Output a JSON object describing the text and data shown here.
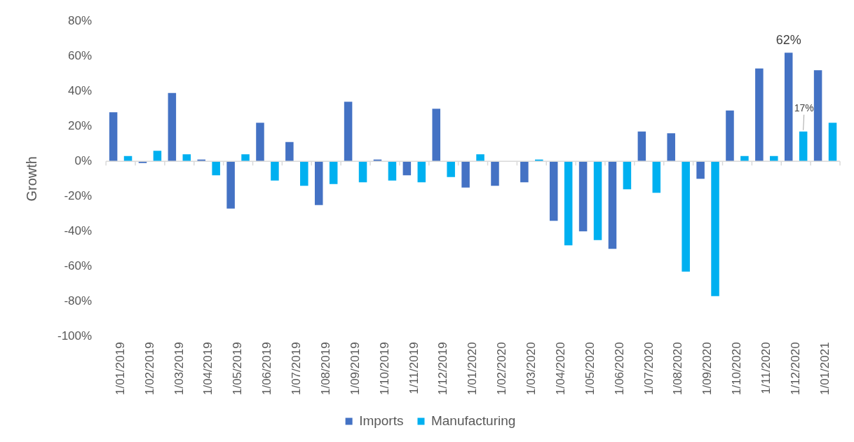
{
  "chart_data": {
    "type": "bar",
    "ylabel": "Growth",
    "categories": [
      "1/01/2019",
      "1/02/2019",
      "1/03/2019",
      "1/04/2019",
      "1/05/2019",
      "1/06/2019",
      "1/07/2019",
      "1/08/2019",
      "1/09/2019",
      "1/10/2019",
      "1/11/2019",
      "1/12/2019",
      "1/01/2020",
      "1/02/2020",
      "1/03/2020",
      "1/04/2020",
      "1/05/2020",
      "1/06/2020",
      "1/07/2020",
      "1/08/2020",
      "1/09/2020",
      "1/10/2020",
      "1/11/2020",
      "1/12/2020",
      "1/01/2021"
    ],
    "series": [
      {
        "name": "Imports",
        "color": "#4472c4",
        "values": [
          28,
          -1,
          39,
          1,
          -27,
          22,
          11,
          -25,
          34,
          1,
          -8,
          30,
          -15,
          -14,
          -12,
          -34,
          -40,
          -50,
          17,
          16,
          -10,
          29,
          53,
          62,
          52
        ],
        "value_labels": [
          null,
          null,
          null,
          null,
          null,
          null,
          null,
          null,
          null,
          null,
          null,
          null,
          null,
          null,
          null,
          null,
          null,
          null,
          null,
          null,
          null,
          null,
          null,
          "62%",
          null
        ]
      },
      {
        "name": "Manufacturing",
        "color": "#00b0f0",
        "values": [
          3,
          6,
          4,
          -8,
          4,
          -11,
          -14,
          -13,
          -12,
          -11,
          -12,
          -9,
          4,
          0,
          1,
          -48,
          -45,
          -16,
          -18,
          -63,
          -77,
          3,
          3,
          17,
          22
        ],
        "value_labels": [
          null,
          null,
          null,
          null,
          null,
          null,
          null,
          null,
          null,
          null,
          null,
          null,
          null,
          null,
          null,
          null,
          null,
          null,
          null,
          null,
          null,
          null,
          null,
          "17%",
          null
        ]
      }
    ],
    "ylim": [
      -100,
      80
    ],
    "yticks": [
      {
        "value": -100,
        "label": "-100%"
      },
      {
        "value": -80,
        "label": "-80%"
      },
      {
        "value": -60,
        "label": "-60%"
      },
      {
        "value": -40,
        "label": "-40%"
      },
      {
        "value": -20,
        "label": "-20%"
      },
      {
        "value": 0,
        "label": "0%"
      },
      {
        "value": 20,
        "label": "20%"
      },
      {
        "value": 40,
        "label": "40%"
      },
      {
        "value": 60,
        "label": "60%"
      },
      {
        "value": 80,
        "label": "80%"
      }
    ],
    "ref_lines": [
      {
        "axis": "y",
        "value": 0,
        "color": "#d9d9d9"
      }
    ],
    "grid": false,
    "legend": "bottom"
  }
}
